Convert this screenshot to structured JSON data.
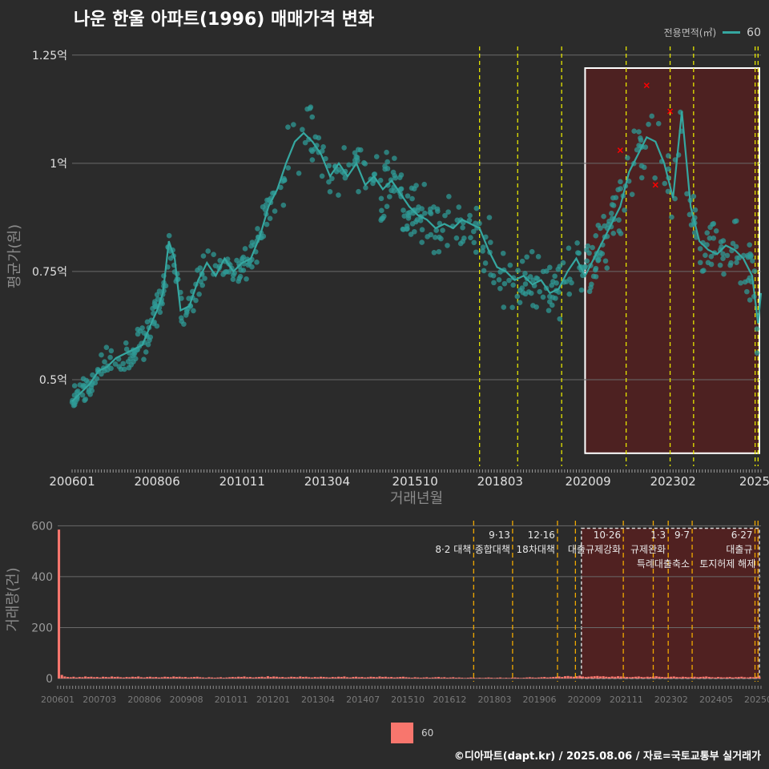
{
  "title": "나운 한울 아파트(1996) 매매가격 변화",
  "legend_top": {
    "label": "전용면적(㎡)",
    "series": "60"
  },
  "legend_bottom": {
    "series": "60"
  },
  "footer": "©디아파트(dapt.kr) / 2025.08.06 / 자료=국토교통부 실거래가",
  "colors": {
    "line": "#35a7a0",
    "points": "#2f9a95",
    "bars": "#f8766d",
    "policy_line_top": "#e6e600",
    "policy_line_bottom": "#f0a800",
    "highlight_fill": "#5a1f1f",
    "highlight_red": "#ff0000",
    "grid": "#6a6a6a"
  },
  "chart_data": [
    {
      "type": "line",
      "title": "",
      "xlabel": "거래년월",
      "ylabel": "평균가(원)",
      "xlim": [
        "2006-01",
        "2025-08"
      ],
      "ylim": [
        0.3,
        1.27
      ],
      "y_unit": "억",
      "grid": true,
      "y_ticks": [
        {
          "value": 0.5,
          "label": "0.5억"
        },
        {
          "value": 0.75,
          "label": "0.75억"
        },
        {
          "value": 1.0,
          "label": "1억"
        },
        {
          "value": 1.25,
          "label": "1.25억"
        }
      ],
      "x_ticks": [
        "200601",
        "200806",
        "201011",
        "201304",
        "201510",
        "201803",
        "202009",
        "202302",
        "2025"
      ],
      "policy_lines": [
        "2017-08",
        "2018-09",
        "2019-12",
        "2021-10",
        "2023-01",
        "2023-09",
        "2025-06",
        "2025-07"
      ],
      "highlight_box": {
        "x_start": "2020-08",
        "x_end": "2025-08",
        "y_start": 0.33,
        "y_end": 1.22
      },
      "series": [
        {
          "name": "60",
          "points": [
            [
              "2006-01",
              0.45
            ],
            [
              "2006-04",
              0.47
            ],
            [
              "2006-07",
              0.49
            ],
            [
              "2006-10",
              0.52
            ],
            [
              "2007-01",
              0.53
            ],
            [
              "2007-04",
              0.55
            ],
            [
              "2007-07",
              0.56
            ],
            [
              "2007-10",
              0.57
            ],
            [
              "2008-01",
              0.58
            ],
            [
              "2008-04",
              0.63
            ],
            [
              "2008-06",
              0.66
            ],
            [
              "2008-08",
              0.7
            ],
            [
              "2008-10",
              0.82
            ],
            [
              "2008-12",
              0.78
            ],
            [
              "2009-02",
              0.66
            ],
            [
              "2009-05",
              0.67
            ],
            [
              "2009-08",
              0.73
            ],
            [
              "2009-11",
              0.77
            ],
            [
              "2010-02",
              0.74
            ],
            [
              "2010-05",
              0.78
            ],
            [
              "2010-08",
              0.75
            ],
            [
              "2010-11",
              0.77
            ],
            [
              "2011-02",
              0.78
            ],
            [
              "2011-05",
              0.83
            ],
            [
              "2011-08",
              0.9
            ],
            [
              "2011-11",
              0.94
            ],
            [
              "2012-02",
              1.0
            ],
            [
              "2012-05",
              1.05
            ],
            [
              "2012-08",
              1.07
            ],
            [
              "2012-11",
              1.05
            ],
            [
              "2013-02",
              1.02
            ],
            [
              "2013-05",
              0.97
            ],
            [
              "2013-08",
              1.0
            ],
            [
              "2013-11",
              0.97
            ],
            [
              "2014-02",
              1.0
            ],
            [
              "2014-05",
              0.95
            ],
            [
              "2014-08",
              0.97
            ],
            [
              "2014-11",
              0.94
            ],
            [
              "2015-02",
              0.96
            ],
            [
              "2015-05",
              0.93
            ],
            [
              "2015-08",
              0.9
            ],
            [
              "2015-11",
              0.88
            ],
            [
              "2016-02",
              0.87
            ],
            [
              "2016-05",
              0.85
            ],
            [
              "2016-08",
              0.86
            ],
            [
              "2016-11",
              0.85
            ],
            [
              "2017-02",
              0.87
            ],
            [
              "2017-05",
              0.86
            ],
            [
              "2017-08",
              0.85
            ],
            [
              "2017-11",
              0.8
            ],
            [
              "2018-02",
              0.76
            ],
            [
              "2018-05",
              0.75
            ],
            [
              "2018-08",
              0.73
            ],
            [
              "2018-11",
              0.74
            ],
            [
              "2019-02",
              0.72
            ],
            [
              "2019-05",
              0.73
            ],
            [
              "2019-08",
              0.7
            ],
            [
              "2019-11",
              0.71
            ],
            [
              "2020-02",
              0.75
            ],
            [
              "2020-05",
              0.78
            ],
            [
              "2020-08",
              0.74
            ],
            [
              "2020-11",
              0.78
            ],
            [
              "2021-02",
              0.82
            ],
            [
              "2021-05",
              0.86
            ],
            [
              "2021-08",
              0.9
            ],
            [
              "2021-11",
              0.98
            ],
            [
              "2022-02",
              1.02
            ],
            [
              "2022-05",
              1.06
            ],
            [
              "2022-08",
              1.05
            ],
            [
              "2022-11",
              1.0
            ],
            [
              "2023-02",
              0.92
            ],
            [
              "2023-05",
              1.12
            ],
            [
              "2023-08",
              0.9
            ],
            [
              "2023-11",
              0.82
            ],
            [
              "2024-02",
              0.8
            ],
            [
              "2024-05",
              0.79
            ],
            [
              "2024-08",
              0.81
            ],
            [
              "2024-11",
              0.8
            ],
            [
              "2025-02",
              0.78
            ],
            [
              "2025-05",
              0.74
            ],
            [
              "2025-07",
              0.63
            ],
            [
              "2025-08",
              0.7
            ]
          ]
        }
      ]
    },
    {
      "type": "bar",
      "title": "",
      "xlabel": "",
      "ylabel": "거래량(건)",
      "ylim": [
        0,
        620
      ],
      "y_ticks": [
        0,
        200,
        400,
        600
      ],
      "x_ticks": [
        "200601",
        "200703",
        "200806",
        "200908",
        "201011",
        "201201",
        "201304",
        "201407",
        "201510",
        "201612",
        "201803",
        "201906",
        "202009",
        "202111",
        "202302",
        "202405",
        "202508"
      ],
      "highlight_box": {
        "x_start": "2020-08",
        "x_end": "2025-08"
      },
      "policy_annotations": [
        {
          "date": "2017-08",
          "line1": "",
          "line2": "8·2 대책"
        },
        {
          "date": "2018-09",
          "line1": "9·13",
          "line2": "종합대책"
        },
        {
          "date": "2019-12",
          "line1": "12·16",
          "line2": "18차대책"
        },
        {
          "date": "2020-06",
          "line1": "",
          "line2": ""
        },
        {
          "date": "2021-10",
          "line1": "10·26",
          "line2": "대출규제강화"
        },
        {
          "date": "2022-08",
          "line1": "",
          "line2": ""
        },
        {
          "date": "2023-01",
          "line1": "1·3",
          "line2": "규제완화"
        },
        {
          "date": "2023-09",
          "line1": "9·7",
          "line2": "특례대출축소"
        },
        {
          "date": "2025-06",
          "line1": "6·27",
          "line2": "대출규"
        },
        {
          "date": "2025-07",
          "line1": "",
          "line2": "토지허제 해제"
        }
      ],
      "series": [
        {
          "name": "60",
          "values": [
            585,
            14,
            8,
            6,
            5,
            7,
            4,
            6,
            5,
            8,
            6,
            7,
            5,
            6,
            4,
            7,
            6,
            5,
            8,
            6,
            7,
            5,
            4,
            6,
            5,
            7,
            6,
            8,
            5,
            4,
            6,
            7,
            5,
            6,
            4,
            5,
            7,
            6,
            5,
            8,
            6,
            7,
            5,
            6,
            4,
            5,
            6,
            7,
            5,
            4,
            3,
            5,
            4,
            3,
            4,
            5,
            3,
            4,
            5,
            6,
            5,
            7,
            6,
            8,
            5,
            6,
            4,
            5,
            6,
            7,
            5,
            9,
            6,
            8,
            7,
            5,
            6,
            4,
            5,
            7,
            6,
            5,
            8,
            6,
            7,
            5,
            4,
            6,
            5,
            7,
            6,
            5,
            4,
            6,
            5,
            7,
            6,
            8,
            5,
            4,
            6,
            7,
            5,
            6,
            4,
            5,
            7,
            6,
            5,
            8,
            6,
            7,
            5,
            6,
            4,
            5,
            6,
            7,
            5,
            4,
            3,
            5,
            4,
            3,
            4,
            5,
            3,
            4,
            5,
            6,
            4,
            5,
            3,
            4,
            5,
            3,
            4,
            3,
            2,
            3,
            4,
            3,
            2,
            3,
            2,
            3,
            4,
            3,
            2,
            3,
            4,
            2,
            3,
            2,
            3,
            4,
            3,
            2,
            3,
            4,
            5,
            4,
            3,
            4,
            5,
            6,
            4,
            5,
            6,
            7,
            8,
            6,
            9,
            10,
            8,
            7,
            9,
            11,
            8,
            6,
            7,
            8,
            9,
            10,
            8,
            9,
            7,
            6,
            8,
            7,
            9,
            8,
            7,
            6,
            5,
            6,
            7,
            8,
            6,
            5,
            7,
            6,
            8,
            9,
            7,
            6,
            5,
            6,
            7,
            8,
            6,
            5,
            7,
            6,
            5,
            6,
            7,
            5,
            6,
            7,
            8,
            6,
            5,
            4,
            6,
            5,
            4,
            5,
            6,
            4,
            5,
            6,
            7,
            5,
            4,
            6,
            5,
            7,
            8
          ]
        }
      ]
    }
  ]
}
